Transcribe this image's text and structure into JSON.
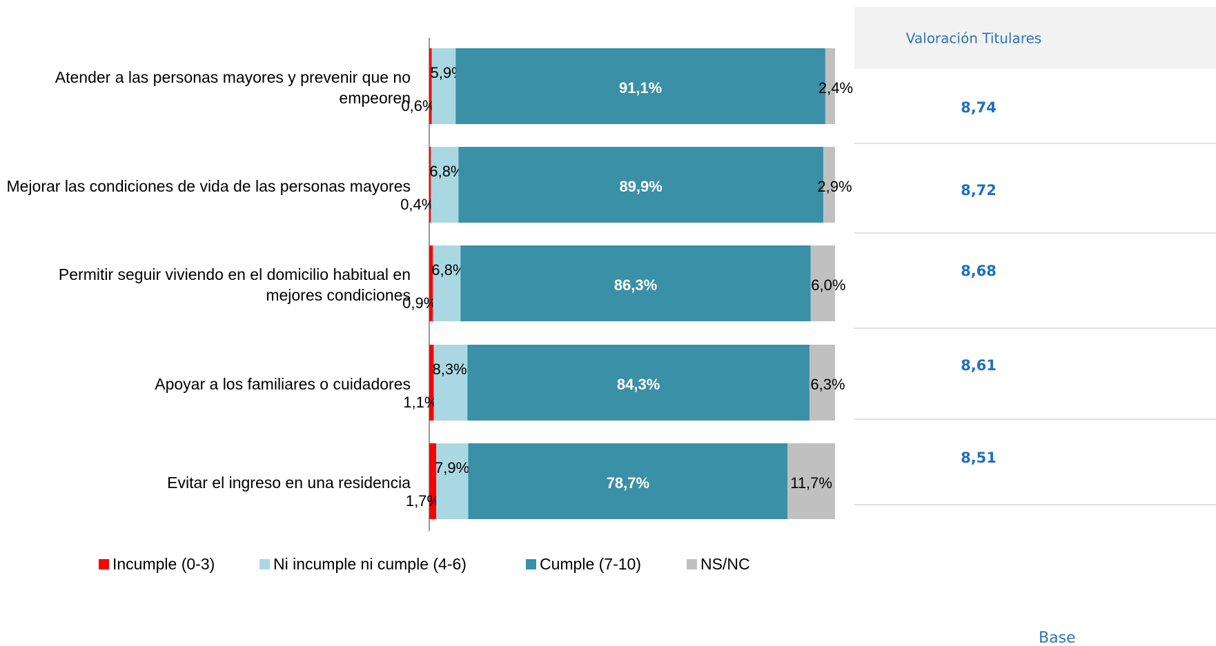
{
  "chart_data": {
    "type": "stacked_barh",
    "categories": [
      "Atender a las personas mayores y prevenir que no empeoren",
      "Mejorar las condiciones de vida de las personas mayores",
      "Permitir seguir viviendo en el domicilio habitual en mejores condiciones",
      "Apoyar a los familiares o cuidadores",
      "Evitar el ingreso en una residencia"
    ],
    "xlim": [
      0,
      100
    ],
    "legend": "bottom",
    "series": [
      {
        "name": "Incumple (0-3)",
        "color": "#ff0000",
        "values": [
          0.6,
          0.4,
          0.9,
          1.1,
          1.7
        ],
        "value_labels": [
          "0,6%",
          "0,4%",
          "0,9%",
          "1,1%",
          "1,7%"
        ]
      },
      {
        "name": "Ni incumple ni cumple (4-6)",
        "color": "#a9d8e3",
        "values": [
          5.9,
          6.8,
          6.8,
          8.3,
          7.9
        ],
        "value_labels": [
          "5,9%",
          "6,8%",
          "6,8%",
          "8,3%",
          "7,9%"
        ]
      },
      {
        "name": "Cumple (7-10)",
        "color": "#3a90a6",
        "values": [
          91.1,
          89.9,
          86.3,
          84.3,
          78.7
        ],
        "value_labels": [
          "91,1%",
          "89,9%",
          "86,3%",
          "84,3%",
          "78,7%"
        ]
      },
      {
        "name": "NS/NC",
        "color": "#c0c0c0",
        "values": [
          2.4,
          2.9,
          6.0,
          6.3,
          11.7
        ],
        "value_labels": [
          "2,4%",
          "2,9%",
          "6,0%",
          "6,3%",
          "11,7%"
        ]
      }
    ]
  },
  "table": {
    "header": "Valoración Titulares",
    "rows": [
      "8,74",
      "8,72",
      "8,68",
      "8,61",
      "8,51"
    ]
  },
  "footnote": "Base"
}
